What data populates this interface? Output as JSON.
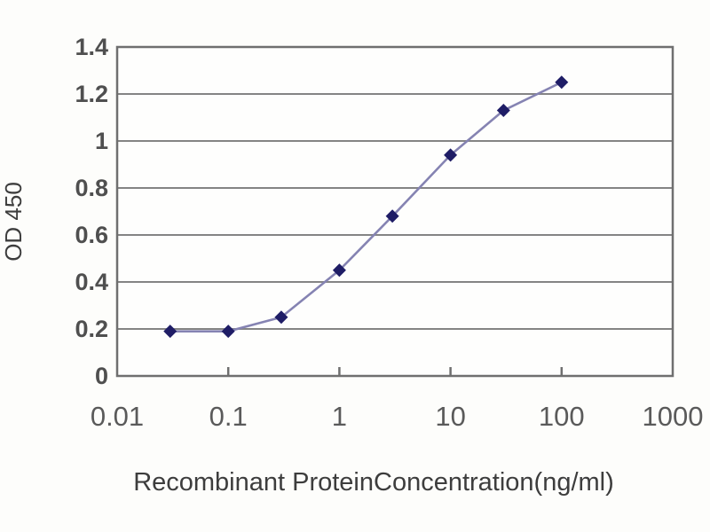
{
  "chart_data": {
    "type": "line",
    "x": [
      0.03,
      0.1,
      0.3,
      1,
      3,
      10,
      30,
      100
    ],
    "values": [
      0.19,
      0.19,
      0.25,
      0.45,
      0.68,
      0.94,
      1.13,
      1.25
    ],
    "title": "",
    "xlabel": "Recombinant ProteinConcentration(ng/ml)",
    "ylabel": "OD 450",
    "x_scale": "log",
    "xlim": [
      0.01,
      1000
    ],
    "ylim": [
      0,
      1.4
    ],
    "x_tick_labels": [
      "0.01",
      "0.1",
      "1",
      "10",
      "100",
      "1000"
    ],
    "x_tick_values": [
      0.01,
      0.1,
      1,
      10,
      100,
      1000
    ],
    "y_tick_labels": [
      "0",
      "0.2",
      "0.4",
      "0.6",
      "0.8",
      "1",
      "1.2",
      "1.4"
    ],
    "y_tick_values": [
      0,
      0.2,
      0.4,
      0.6,
      0.8,
      1,
      1.2,
      1.4
    ],
    "grid": "horizontal",
    "legend_position": "none",
    "marker": "diamond",
    "colors": {
      "line": "#8583b2",
      "marker": "#1f1d66",
      "grid": "#848484",
      "border": "#6f6f6f",
      "tick_text": "#4f4f4f",
      "x_tick_text": "#5a5a5a",
      "title_text": "#3d3d3d",
      "plot_bg": "#fefefd"
    }
  }
}
